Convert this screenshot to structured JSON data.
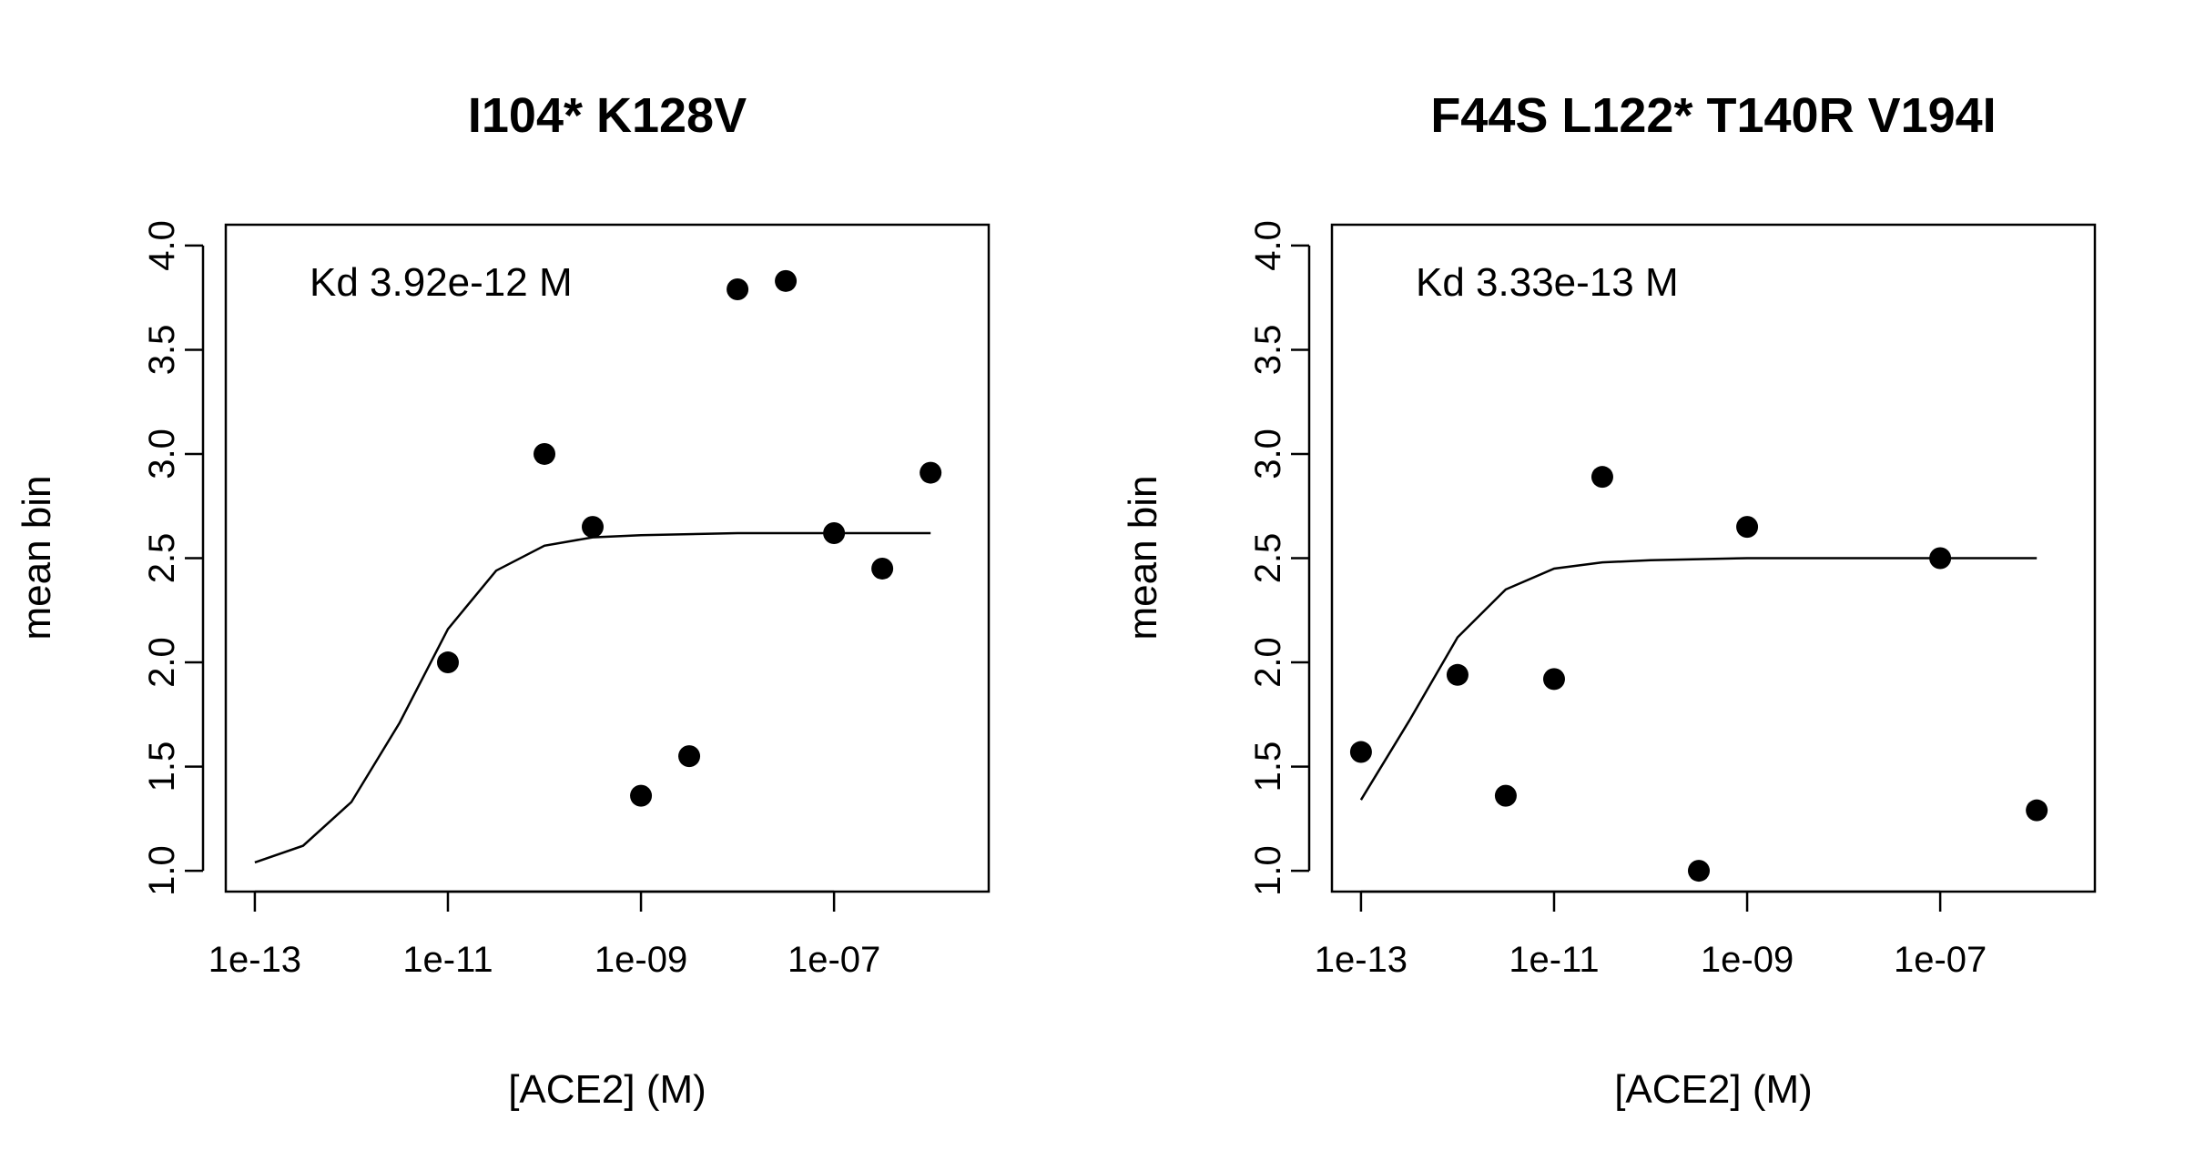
{
  "chart_data": [
    {
      "type": "scatter",
      "title": "I104* K128V",
      "xlabel": "[ACE2] (M)",
      "ylabel": "mean bin",
      "annotation": "Kd 3.92e-12 M",
      "x_scale": "log10",
      "xlim": [
        5e-14,
        4e-06
      ],
      "ylim": [
        0.9,
        4.1
      ],
      "x_ticks": [
        1e-13,
        1e-11,
        1e-09,
        1e-07
      ],
      "x_tick_labels": [
        "1e-13",
        "1e-11",
        "1e-09",
        "1e-07"
      ],
      "y_ticks": [
        1.0,
        1.5,
        2.0,
        2.5,
        3.0,
        3.5,
        4.0
      ],
      "y_tick_labels": [
        "1.0",
        "1.5",
        "2.0",
        "2.5",
        "3.0",
        "3.5",
        "4.0"
      ],
      "points": [
        {
          "x": 1e-11,
          "y": 2.0
        },
        {
          "x": 1e-10,
          "y": 3.0
        },
        {
          "x": 3.16e-10,
          "y": 2.65
        },
        {
          "x": 1e-09,
          "y": 1.36
        },
        {
          "x": 3.16e-09,
          "y": 1.55
        },
        {
          "x": 1e-08,
          "y": 3.79
        },
        {
          "x": 3.16e-08,
          "y": 3.83
        },
        {
          "x": 1e-07,
          "y": 2.62
        },
        {
          "x": 3.16e-07,
          "y": 2.45
        },
        {
          "x": 1e-06,
          "y": 2.91
        }
      ],
      "fit": {
        "x": [
          1e-13,
          3.16e-13,
          1e-12,
          3.16e-12,
          1e-11,
          3.16e-11,
          1e-10,
          3.16e-10,
          1e-09,
          1e-08,
          1e-07,
          1e-06
        ],
        "y": [
          1.04,
          1.12,
          1.33,
          1.71,
          2.16,
          2.44,
          2.56,
          2.6,
          2.61,
          2.62,
          2.62,
          2.62
        ]
      }
    },
    {
      "type": "scatter",
      "title": "F44S L122* T140R V194I",
      "xlabel": "[ACE2] (M)",
      "ylabel": "mean bin",
      "annotation": "Kd 3.33e-13 M",
      "x_scale": "log10",
      "xlim": [
        5e-14,
        4e-06
      ],
      "ylim": [
        0.9,
        4.1
      ],
      "x_ticks": [
        1e-13,
        1e-11,
        1e-09,
        1e-07
      ],
      "x_tick_labels": [
        "1e-13",
        "1e-11",
        "1e-09",
        "1e-07"
      ],
      "y_ticks": [
        1.0,
        1.5,
        2.0,
        2.5,
        3.0,
        3.5,
        4.0
      ],
      "y_tick_labels": [
        "1.0",
        "1.5",
        "2.0",
        "2.5",
        "3.0",
        "3.5",
        "4.0"
      ],
      "points": [
        {
          "x": 1e-13,
          "y": 1.57
        },
        {
          "x": 1e-12,
          "y": 1.94
        },
        {
          "x": 3.16e-12,
          "y": 1.36
        },
        {
          "x": 1e-11,
          "y": 1.92
        },
        {
          "x": 3.16e-11,
          "y": 2.89
        },
        {
          "x": 3.16e-10,
          "y": 1.0
        },
        {
          "x": 1e-09,
          "y": 2.65
        },
        {
          "x": 1e-07,
          "y": 2.5
        },
        {
          "x": 1e-06,
          "y": 1.29
        }
      ],
      "fit": {
        "x": [
          1e-13,
          3.16e-13,
          1e-12,
          3.16e-12,
          1e-11,
          3.16e-11,
          1e-10,
          1e-09,
          1e-08,
          1e-07,
          1e-06
        ],
        "y": [
          1.34,
          1.72,
          2.12,
          2.35,
          2.45,
          2.48,
          2.49,
          2.5,
          2.5,
          2.5,
          2.5
        ]
      }
    }
  ]
}
